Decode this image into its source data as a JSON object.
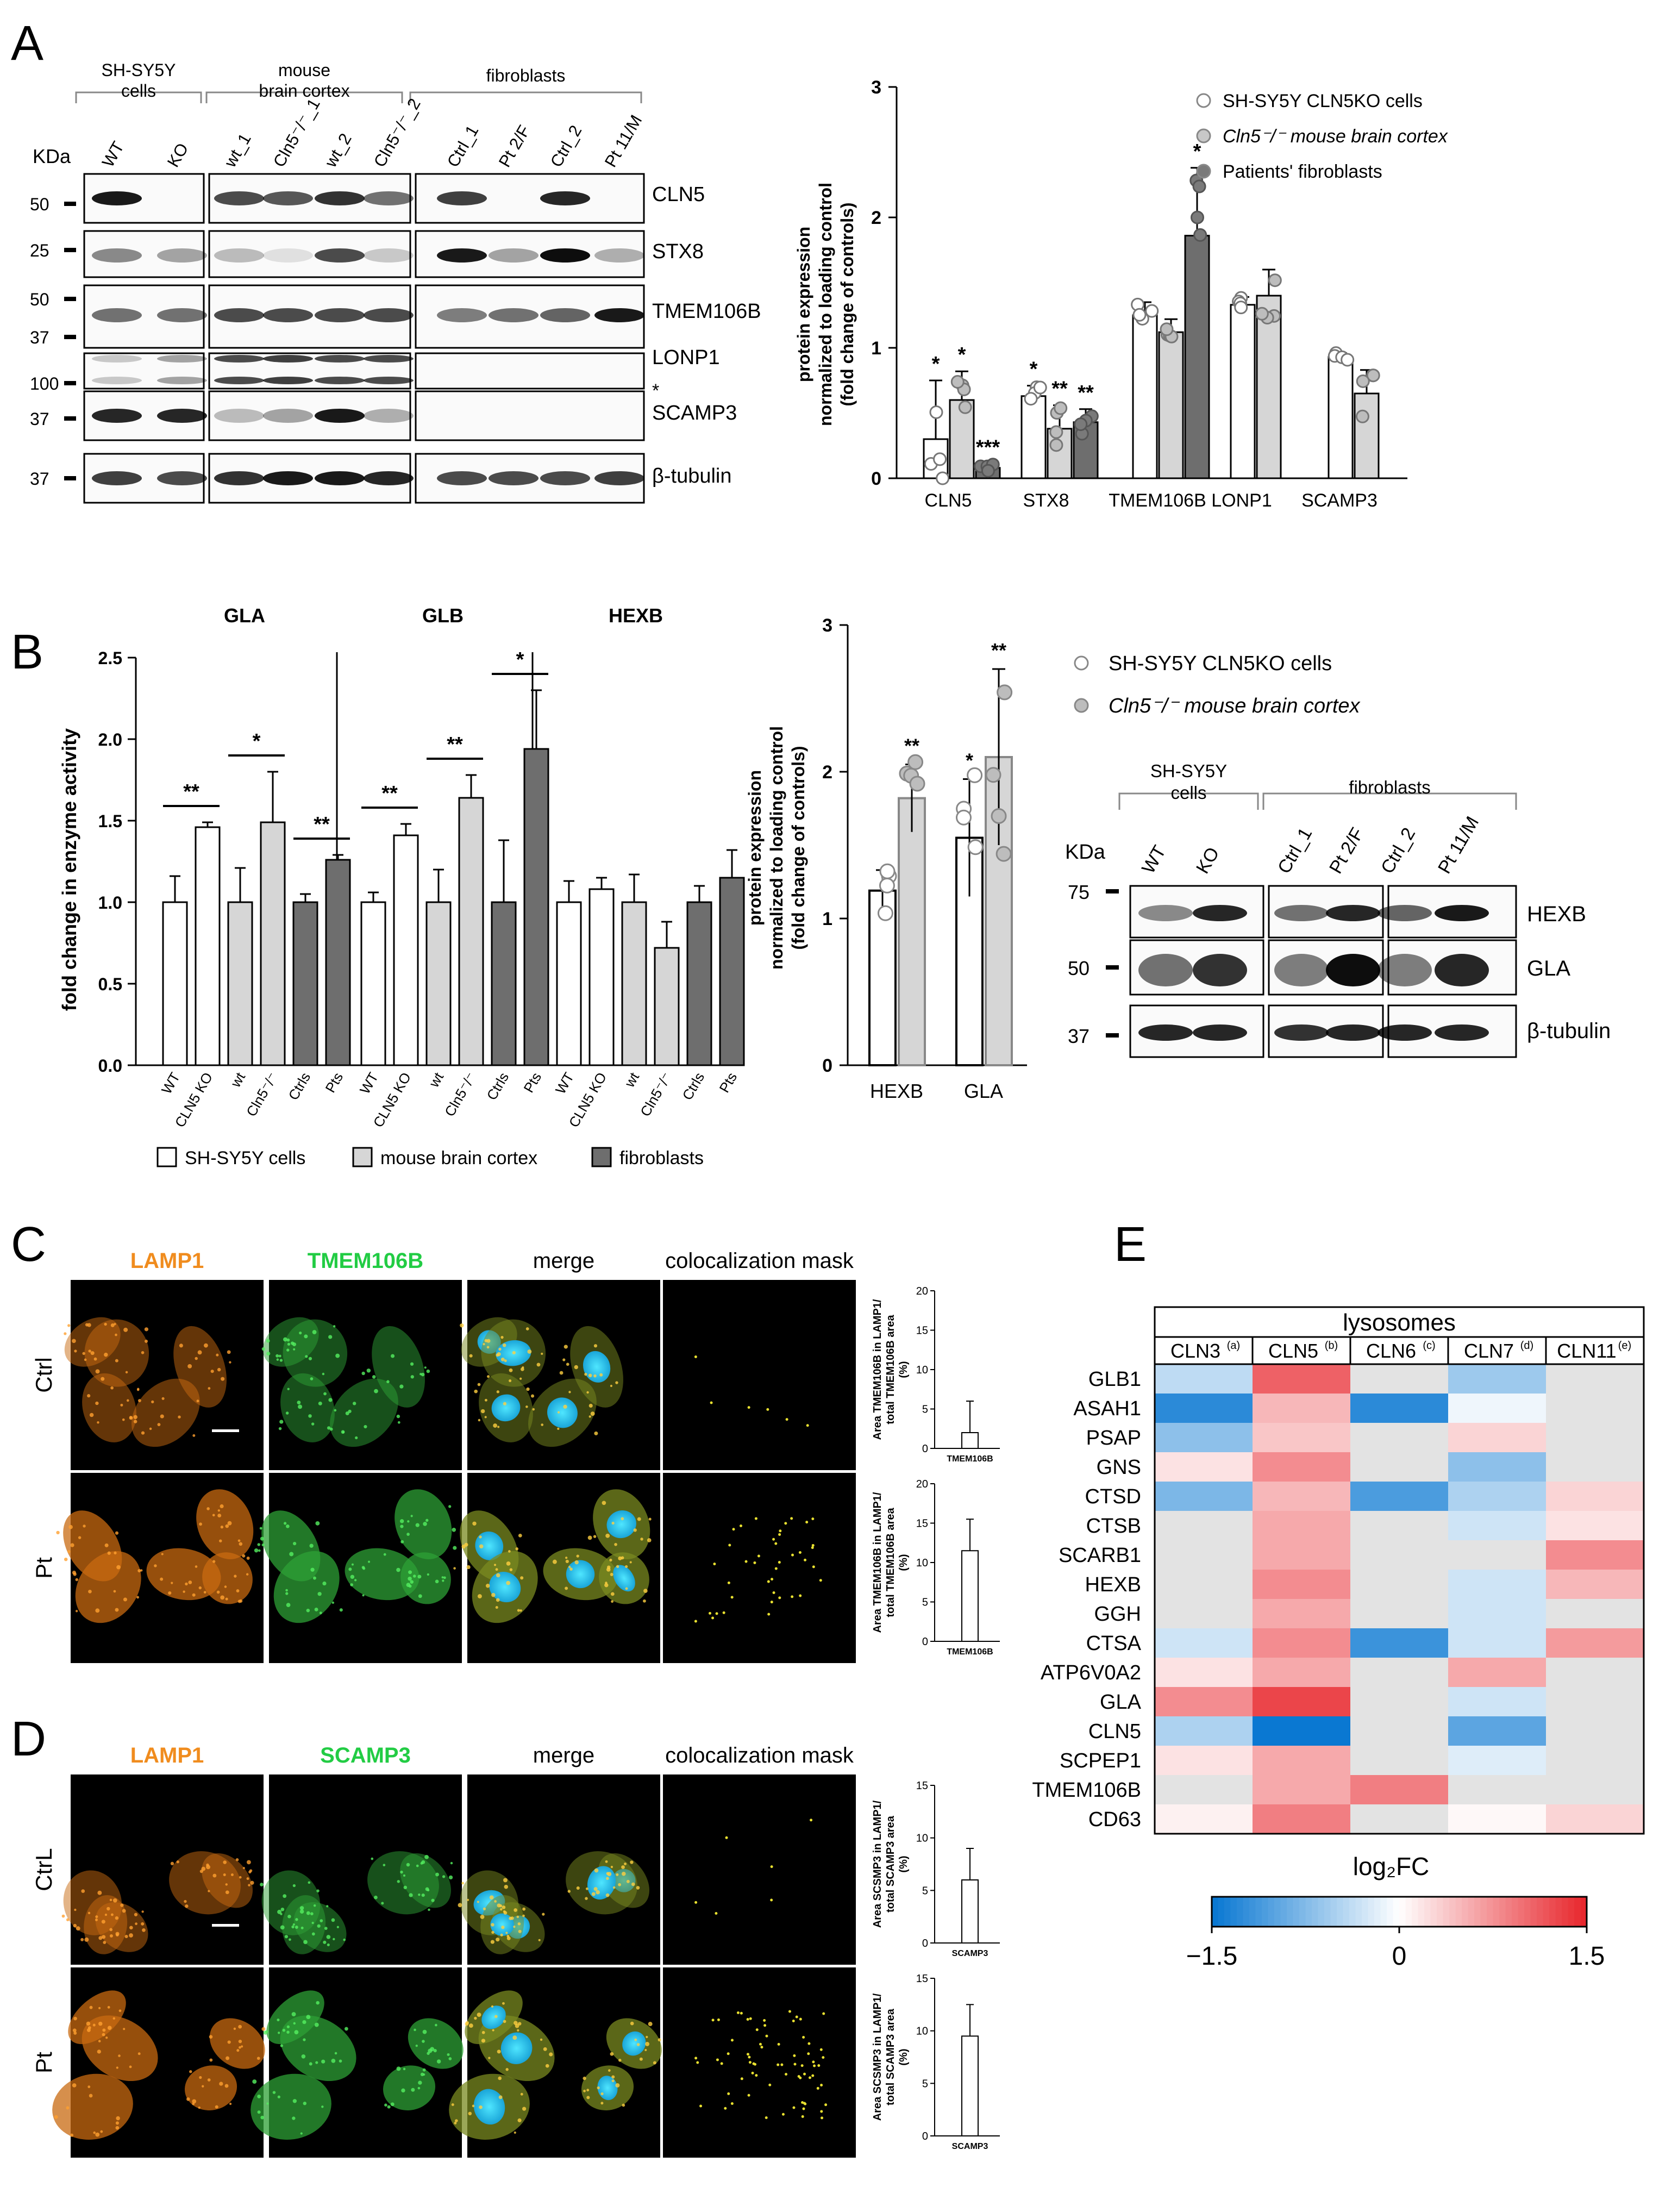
{
  "panel_labels": {
    "A": "A",
    "B": "B",
    "C": "C",
    "D": "D",
    "E": "E"
  },
  "colors": {
    "white_bar": "#ffffff",
    "light_bar": "#d6d6d6",
    "dark_bar": "#6e6e6e",
    "orange": "#f08c1e",
    "green": "#22cc44",
    "heat_neg": "#0a78d2",
    "heat_pos": "#e8282e",
    "heat_na": "#e3e3e3"
  },
  "blotA": {
    "groups": [
      "SH-SY5Y\ncells",
      "mouse\nbrain cortex",
      "fibroblasts"
    ],
    "lanes": [
      "WT",
      "KO",
      "wt_1",
      "Cln5⁻/⁻_1",
      "wt_2",
      "Cln5⁻/⁻_2",
      "Ctrl_1",
      "Pt 2/F",
      "Ctrl_2",
      "Pt 11/M"
    ],
    "kda_title": "KDa",
    "markers": [
      "50",
      "25",
      "50",
      "37",
      "100",
      "37",
      "37"
    ],
    "proteins": [
      "CLN5",
      "STX8",
      "TMEM106B",
      "LONP1",
      "SCAMP3",
      "β-tubulin"
    ],
    "star": "*"
  },
  "chartA": {
    "ylabel": "protein expression\nnormalized to loading control\n(fold change of controls)",
    "legend": [
      "SH-SY5Y CLN5KO cells",
      "Cln5⁻/⁻ mouse brain cortex",
      "Patients' fibroblasts"
    ]
  },
  "chartB": {
    "ylabel": "fold change in enzyme activity",
    "sections": [
      "GLA",
      "GLB",
      "HEXB"
    ],
    "xticks": [
      "WT",
      "CLN5 KO",
      "wt",
      "Cln5⁻/⁻",
      "Ctrls",
      "Pts"
    ],
    "legend": [
      "SH-SY5Y cells",
      "mouse brain cortex",
      "fibroblasts"
    ]
  },
  "chartB2": {
    "ylabel": "protein expression\nnormalized to loading control\n(fold change of controls)",
    "legend": [
      "SH-SY5Y CLN5KO cells",
      "Cln5⁻/⁻ mouse brain cortex"
    ]
  },
  "blotB": {
    "groups": [
      "SH-SY5Y\ncells",
      "fibroblasts"
    ],
    "lanes": [
      "WT",
      "KO",
      "Ctrl_1",
      "Pt 2/F",
      "Ctrl_2",
      "Pt 11/M"
    ],
    "kda_title": "KDa",
    "markers": [
      "75",
      "50",
      "37"
    ],
    "proteins": [
      "HEXB",
      "GLA",
      "β-tubulin"
    ]
  },
  "panelC": {
    "cols": [
      "LAMP1",
      "TMEM106B",
      "merge",
      "colocalization mask"
    ],
    "rows": [
      "Ctrl",
      "Pt"
    ],
    "ylabel": "Area TMEM106B in LAMP1/\ntotal TMEM106B area\n(%)",
    "xlabel": "TMEM106B"
  },
  "panelD": {
    "cols": [
      "LAMP1",
      "SCAMP3",
      "merge",
      "colocalization mask"
    ],
    "rows": [
      "CtrL",
      "Pt"
    ],
    "ylabel": "Area SCSMP3 in LAMP1/\ntotal SCAMP3 area\n(%)",
    "xlabel": "SCAMP3"
  },
  "panelE": {
    "title": "lysosomes",
    "columns": [
      {
        "name": "CLN3",
        "sup": "(a)"
      },
      {
        "name": "CLN5",
        "sup": "(b)"
      },
      {
        "name": "CLN6",
        "sup": "(c)"
      },
      {
        "name": "CLN7",
        "sup": "(d)"
      },
      {
        "name": "CLN11",
        "sup": "(e)"
      }
    ],
    "colorbar_label": "log₂FC",
    "colorbar_ticks": [
      "−1.5",
      "0",
      "1.5"
    ]
  },
  "chart_data": [
    {
      "type": "bar",
      "panel": "A",
      "categories": [
        "CLN5",
        "STX8",
        "TMEM106B",
        "LONP1",
        "SCAMP3"
      ],
      "series": [
        {
          "name": "SH-SY5Y CLN5KO cells",
          "values": [
            0.3,
            0.63,
            1.25,
            1.33,
            0.93
          ],
          "errors": [
            0.45,
            0.08,
            0.1,
            0.06,
            0.03
          ],
          "labels": [
            "*",
            "*",
            "",
            "",
            ""
          ]
        },
        {
          "name": "Cln5⁻/⁻ mouse brain cortex",
          "values": [
            0.6,
            0.38,
            1.12,
            1.4,
            0.65
          ],
          "errors": [
            0.22,
            0.18,
            0.1,
            0.2,
            0.18
          ],
          "labels": [
            "*",
            "**",
            "",
            "",
            ""
          ]
        },
        {
          "name": "Patients' fibroblasts",
          "values": [
            0.08,
            0.43,
            1.86,
            null,
            null
          ],
          "errors": [
            0.03,
            0.1,
            0.52,
            null,
            null
          ],
          "labels": [
            "***",
            "**",
            "*",
            "",
            ""
          ]
        }
      ],
      "yticks": [
        "0",
        "1",
        "2",
        "3"
      ],
      "ylim": [
        0,
        3
      ]
    },
    {
      "type": "bar",
      "panel": "B-activity",
      "groups": [
        "GLA",
        "GLB",
        "HEXB"
      ],
      "categories": [
        "WT",
        "CLN5 KO",
        "wt",
        "Cln5⁻/⁻",
        "Ctrls",
        "Pts"
      ],
      "values": [
        [
          1.0,
          1.46,
          1.0,
          1.49,
          1.0,
          1.26
        ],
        [
          1.0,
          1.41,
          1.0,
          1.64,
          1.0,
          1.94
        ],
        [
          1.0,
          1.08,
          1.0,
          0.72,
          1.0,
          1.15
        ]
      ],
      "errors": [
        [
          0.16,
          0.03,
          0.21,
          0.31,
          0.05,
          0.03
        ],
        [
          0.06,
          0.07,
          0.2,
          0.14,
          0.38,
          0.36
        ],
        [
          0.13,
          0.07,
          0.17,
          0.16,
          0.1,
          0.17
        ]
      ],
      "significance": [
        [
          "**",
          "*",
          "**"
        ],
        [
          "**",
          "**",
          "*"
        ],
        [
          "",
          "",
          ""
        ]
      ],
      "yticks": [
        "0.0",
        "0.5",
        "1.0",
        "1.5",
        "2.0",
        "2.5"
      ],
      "ylim": [
        0,
        2.5
      ]
    },
    {
      "type": "bar",
      "panel": "B-protein",
      "categories": [
        "HEXB",
        "GLA"
      ],
      "series": [
        {
          "name": "SH-SY5Y CLN5KO cells",
          "values": [
            1.19,
            1.55
          ],
          "errors": [
            0.14,
            0.4
          ],
          "labels": [
            "",
            "*"
          ]
        },
        {
          "name": "Cln5⁻/⁻ mouse brain cortex",
          "values": [
            1.82,
            2.1
          ],
          "errors": [
            0.23,
            0.6
          ],
          "labels": [
            "**",
            "**"
          ]
        }
      ],
      "yticks": [
        "0",
        "1",
        "2",
        "3"
      ],
      "ylim": [
        0,
        3
      ]
    },
    {
      "type": "bar",
      "panel": "C-quant",
      "categories": [
        "TMEM106B"
      ],
      "subcharts": [
        {
          "row": "Ctrl",
          "value": 2.0,
          "error": 4.0
        },
        {
          "row": "Pt",
          "value": 11.5,
          "error": 4.0
        }
      ],
      "yticks": [
        "0",
        "5",
        "10",
        "15",
        "20"
      ],
      "ylim": [
        0,
        20
      ]
    },
    {
      "type": "bar",
      "panel": "D-quant",
      "categories": [
        "SCAMP3"
      ],
      "subcharts": [
        {
          "row": "CtrL",
          "value": 6.0,
          "error": 3.0
        },
        {
          "row": "Pt",
          "value": 9.5,
          "error": 3.0
        }
      ],
      "yticks": [
        "0",
        "5",
        "10",
        "15"
      ],
      "ylim": [
        0,
        15
      ]
    },
    {
      "type": "heatmap",
      "panel": "E",
      "rows": [
        "GLB1",
        "ASAH1",
        "PSAP",
        "GNS",
        "CTSD",
        "CTSB",
        "SCARB1",
        "HEXB",
        "GGH",
        "CTSA",
        "ATP6V0A2",
        "GLA",
        "CLN5",
        "SCPEP1",
        "TMEM106B",
        "CD63"
      ],
      "columns": [
        "CLN3",
        "CLN5",
        "CLN6",
        "CLN7",
        "CLN11"
      ],
      "values": [
        [
          -0.4,
          1.1,
          null,
          -0.6,
          null
        ],
        [
          -1.3,
          0.5,
          -1.3,
          -0.1,
          null
        ],
        [
          -0.7,
          0.4,
          null,
          0.3,
          null
        ],
        [
          0.2,
          0.8,
          null,
          -0.7,
          null
        ],
        [
          -0.8,
          0.5,
          -1.1,
          -0.5,
          0.3
        ],
        [
          null,
          0.6,
          null,
          -0.3,
          0.2
        ],
        [
          null,
          0.6,
          null,
          null,
          0.8
        ],
        [
          null,
          0.8,
          null,
          -0.3,
          0.5
        ],
        [
          null,
          0.6,
          null,
          -0.3,
          null
        ],
        [
          -0.3,
          0.8,
          -1.2,
          -0.3,
          0.7
        ],
        [
          0.2,
          0.6,
          null,
          0.6,
          null
        ],
        [
          0.8,
          1.3,
          null,
          -0.3,
          null
        ],
        [
          -0.5,
          -1.5,
          null,
          -1.0,
          null
        ],
        [
          0.2,
          0.6,
          null,
          -0.2,
          null
        ],
        [
          null,
          0.6,
          0.9,
          null,
          null
        ],
        [
          0.1,
          0.9,
          null,
          0.05,
          0.3
        ]
      ],
      "colorbar": {
        "min": -1.5,
        "max": 1.5
      }
    }
  ]
}
